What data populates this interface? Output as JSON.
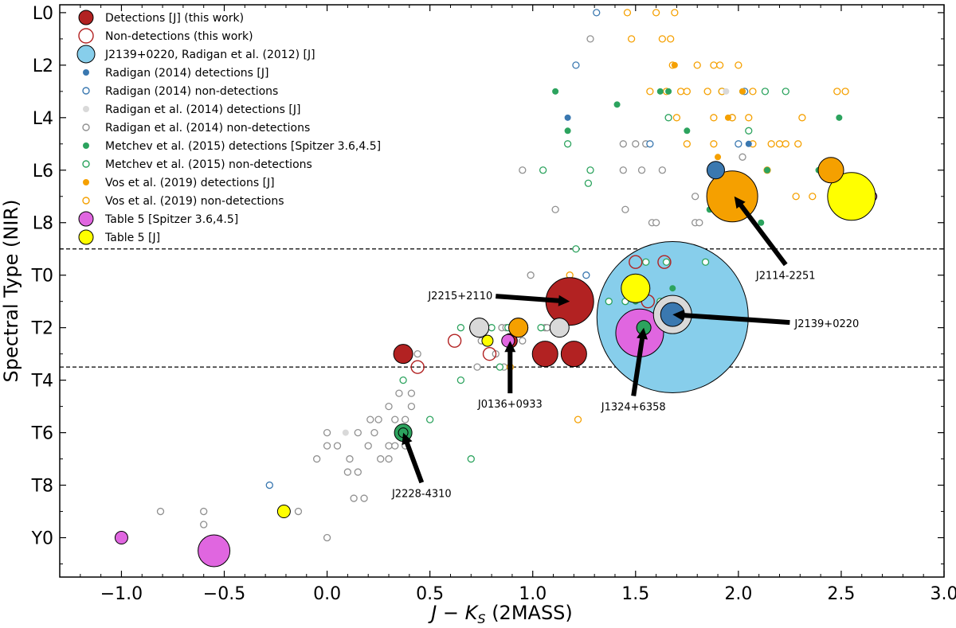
{
  "chart_data": {
    "type": "scatter",
    "title": "",
    "xlabel_main": "J − K",
    "xlabel_sub": "S",
    "xlabel_suffix": " (2MASS)",
    "ylabel": "Spectral Type (NIR)",
    "xlim": [
      -1.3,
      3.0
    ],
    "ylim": [
      -0.3,
      21.5
    ],
    "x_ticks": [
      -1.0,
      -0.5,
      0.0,
      0.5,
      1.0,
      1.5,
      2.0,
      2.5,
      3.0
    ],
    "x_tick_labels": [
      "−1.0",
      "−0.5",
      "0.0",
      "0.5",
      "1.0",
      "1.5",
      "2.0",
      "2.5",
      "3.0"
    ],
    "y_ticks": [
      0,
      2,
      4,
      6,
      8,
      10,
      12,
      14,
      16,
      18,
      20
    ],
    "y_tick_labels": [
      "L0",
      "L2",
      "L4",
      "L6",
      "L8",
      "T0",
      "T2",
      "T4",
      "T6",
      "T8",
      "Y0"
    ],
    "hlines": [
      9.0,
      13.5
    ],
    "grid": false,
    "legend_position": "top-left",
    "colors": {
      "detection_red": "#b22222",
      "blue": "#3a78b0",
      "green": "#2ca35e",
      "orange": "#f5a000",
      "gray_fill": "#d9d9d9",
      "gray_edge": "#909090",
      "magenta": "#e066e0",
      "yellow": "#ffff00",
      "skyblue": "#87ceeb"
    },
    "legend": [
      {
        "label": "Detections [J] (this work)",
        "marker": "big",
        "fill": "#b22222",
        "edge": "#000000"
      },
      {
        "label": "Non-detections (this work)",
        "marker": "big-open",
        "fill": "none",
        "edge": "#b22222"
      },
      {
        "label": "J2139+0220, Radigan et al. (2012) [J]",
        "marker": "bigger",
        "fill": "#87ceeb",
        "edge": "#000000"
      },
      {
        "label": "Radigan (2014) detections [J]",
        "marker": "small",
        "fill": "#3a78b0",
        "edge": "none"
      },
      {
        "label": "Radigan (2014) non-detections",
        "marker": "small-open",
        "fill": "none",
        "edge": "#3a78b0"
      },
      {
        "label": "Radigan et al. (2014) detections [J]",
        "marker": "small",
        "fill": "#d9d9d9",
        "edge": "none"
      },
      {
        "label": "Radigan et al. (2014) non-detections",
        "marker": "small-open",
        "fill": "none",
        "edge": "#909090"
      },
      {
        "label": "Metchev et al. (2015) detections [Spitzer 3.6,4.5]",
        "marker": "small",
        "fill": "#2ca35e",
        "edge": "none"
      },
      {
        "label": "Metchev et al. (2015) non-detections",
        "marker": "small-open",
        "fill": "none",
        "edge": "#2ca35e"
      },
      {
        "label": "Vos et al. (2019) detections [J]",
        "marker": "small",
        "fill": "#f5a000",
        "edge": "none"
      },
      {
        "label": "Vos et al. (2019) non-detections",
        "marker": "small-open",
        "fill": "none",
        "edge": "#f5a000"
      },
      {
        "label": "Table 5 [Spitzer 3.6,4.5]",
        "marker": "big",
        "fill": "#e066e0",
        "edge": "#000000"
      },
      {
        "label": "Table 5 [J]",
        "marker": "big",
        "fill": "#ffff00",
        "edge": "#000000"
      }
    ],
    "series": [
      {
        "name": "Gray non-detections",
        "style": "gn",
        "points": [
          [
            1.28,
            1
          ],
          [
            1.11,
            7.5
          ],
          [
            1.45,
            7.5
          ],
          [
            1.58,
            8
          ],
          [
            1.6,
            8
          ],
          [
            1.79,
            8
          ],
          [
            1.81,
            8
          ],
          [
            1.79,
            7
          ],
          [
            1.63,
            6
          ],
          [
            1.44,
            6
          ],
          [
            1.53,
            6
          ],
          [
            0.95,
            6
          ],
          [
            1.44,
            5
          ],
          [
            1.55,
            5
          ],
          [
            1.5,
            5
          ],
          [
            2.02,
            5.5
          ],
          [
            1.97,
            4
          ],
          [
            -0.05,
            17
          ],
          [
            0.0,
            16.5
          ],
          [
            0.05,
            16.5
          ],
          [
            0.0,
            16
          ],
          [
            0.11,
            17
          ],
          [
            0.15,
            16
          ],
          [
            0.2,
            16.5
          ],
          [
            0.23,
            16
          ],
          [
            0.21,
            15.5
          ],
          [
            0.25,
            15.5
          ],
          [
            0.1,
            17.5
          ],
          [
            0.15,
            17.5
          ],
          [
            0.3,
            16.5
          ],
          [
            0.33,
            16.5
          ],
          [
            0.26,
            17
          ],
          [
            0.39,
            16
          ],
          [
            0.38,
            16.5
          ],
          [
            0.38,
            15.5
          ],
          [
            0.3,
            17
          ],
          [
            0.13,
            18.5
          ],
          [
            0.18,
            18.5
          ],
          [
            -0.6,
            19.5
          ],
          [
            -0.6,
            19
          ],
          [
            -0.81,
            19
          ],
          [
            -0.14,
            19
          ],
          [
            0.0,
            20.0
          ],
          [
            0.3,
            15
          ],
          [
            0.33,
            15.5
          ],
          [
            0.41,
            15
          ],
          [
            0.35,
            14.5
          ],
          [
            0.41,
            14.5
          ],
          [
            0.44,
            13
          ],
          [
            0.75,
            12.5
          ],
          [
            0.82,
            13
          ],
          [
            0.85,
            12
          ],
          [
            0.87,
            12
          ],
          [
            0.9,
            12
          ],
          [
            0.95,
            12.5
          ],
          [
            0.99,
            10
          ],
          [
            1.06,
            12
          ],
          [
            1.07,
            12
          ],
          [
            1.15,
            12
          ],
          [
            1.25,
            10.5
          ],
          [
            0.73,
            13.5
          ],
          [
            0.86,
            13.5
          ],
          [
            0.87,
            12.5
          ],
          [
            0.89,
            12.5
          ],
          [
            0.9,
            12.0
          ]
        ]
      },
      {
        "name": "Blue non-detections",
        "style": "bn",
        "points": [
          [
            1.31,
            0
          ],
          [
            1.21,
            2
          ],
          [
            1.57,
            5
          ],
          [
            2.0,
            5
          ],
          [
            2.03,
            3
          ],
          [
            -0.28,
            18
          ],
          [
            1.26,
            10
          ]
        ]
      },
      {
        "name": "Green non-detections",
        "style": "mn",
        "points": [
          [
            1.17,
            5
          ],
          [
            1.28,
            6
          ],
          [
            1.05,
            6
          ],
          [
            1.27,
            6.5
          ],
          [
            1.66,
            4
          ],
          [
            1.92,
            3
          ],
          [
            2.05,
            4.5
          ],
          [
            2.13,
            3
          ],
          [
            2.23,
            3
          ],
          [
            1.84,
            9.5
          ],
          [
            1.21,
            9
          ],
          [
            1.55,
            9.5
          ],
          [
            1.65,
            9.5
          ],
          [
            1.37,
            11
          ],
          [
            0.84,
            13.5
          ],
          [
            0.8,
            12.0
          ],
          [
            0.88,
            12
          ],
          [
            0.94,
            12
          ],
          [
            1.04,
            12.0
          ],
          [
            0.65,
            14.0
          ],
          [
            0.5,
            15.5
          ],
          [
            0.37,
            14.0
          ],
          [
            0.7,
            17.0
          ],
          [
            0.65,
            12.0
          ],
          [
            1.62,
            11.0
          ],
          [
            1.65,
            11.5
          ],
          [
            1.53,
            12.0
          ],
          [
            1.68,
            12.0
          ],
          [
            1.75,
            11.5
          ],
          [
            1.45,
            11.0
          ]
        ]
      },
      {
        "name": "Vos non-detections",
        "style": "vn",
        "points": [
          [
            1.46,
            0
          ],
          [
            1.48,
            1
          ],
          [
            1.6,
            0
          ],
          [
            1.63,
            1
          ],
          [
            1.67,
            1
          ],
          [
            1.69,
            0
          ],
          [
            1.68,
            2
          ],
          [
            1.8,
            2
          ],
          [
            1.88,
            2
          ],
          [
            1.91,
            2
          ],
          [
            2.0,
            2
          ],
          [
            1.57,
            3
          ],
          [
            1.65,
            3
          ],
          [
            1.72,
            3
          ],
          [
            1.75,
            3
          ],
          [
            1.85,
            3
          ],
          [
            1.92,
            3
          ],
          [
            2.07,
            3
          ],
          [
            1.7,
            4
          ],
          [
            1.88,
            4
          ],
          [
            1.97,
            4
          ],
          [
            2.05,
            4
          ],
          [
            2.31,
            4
          ],
          [
            2.48,
            3
          ],
          [
            2.52,
            3
          ],
          [
            1.75,
            5
          ],
          [
            1.88,
            5
          ],
          [
            2.07,
            5
          ],
          [
            2.16,
            5
          ],
          [
            2.2,
            5
          ],
          [
            2.23,
            5
          ],
          [
            2.29,
            5
          ],
          [
            2.28,
            7
          ],
          [
            2.36,
            7
          ],
          [
            2.14,
            6
          ],
          [
            1.22,
            15.5
          ],
          [
            0.89,
            13.5
          ],
          [
            1.18,
            10.0
          ],
          [
            1.18,
            11.0
          ],
          [
            1.27,
            11.0
          ]
        ]
      },
      {
        "name": "Gray detections",
        "style": "gd",
        "points": [
          [
            1.94,
            3
          ],
          [
            0.09,
            16
          ]
        ]
      },
      {
        "name": "Blue detections",
        "style": "bd",
        "points": [
          [
            1.17,
            4
          ],
          [
            2.05,
            5
          ]
        ]
      },
      {
        "name": "Green detections",
        "style": "md",
        "points": [
          [
            1.11,
            3
          ],
          [
            1.41,
            3.5
          ],
          [
            1.17,
            4.5
          ],
          [
            1.62,
            3
          ],
          [
            1.66,
            3
          ],
          [
            2.02,
            3
          ],
          [
            1.75,
            4.5
          ],
          [
            1.86,
            7.5
          ],
          [
            1.93,
            7.5
          ],
          [
            2.14,
            6
          ],
          [
            2.39,
            6
          ],
          [
            2.49,
            4
          ],
          [
            2.11,
            8
          ],
          [
            1.5,
            11.0
          ],
          [
            1.68,
            10.5
          ],
          [
            1.52,
            12.0
          ]
        ]
      },
      {
        "name": "Vos detections",
        "style": "vd",
        "points": [
          [
            1.69,
            2
          ],
          [
            1.95,
            4
          ],
          [
            1.9,
            5.5
          ],
          [
            2.02,
            3
          ]
        ]
      },
      {
        "name": "J2139+0220 Radigan 2012",
        "style": "sky",
        "points": [
          [
            1.68,
            11.6
          ]
        ],
        "size": 95
      },
      {
        "name": "Detections this work",
        "style": "red",
        "points": [
          [
            1.18,
            11.0
          ],
          [
            0.37,
            13.0
          ],
          [
            1.06,
            13.0
          ],
          [
            1.2,
            13.0
          ],
          [
            0.89,
            12.5
          ],
          [
            1.98,
            7.0
          ]
        ],
        "sizes": [
          30,
          12,
          16,
          16,
          9,
          6
        ]
      },
      {
        "name": "Non-detections this work",
        "style": "redopen",
        "points": [
          [
            1.5,
            9.5
          ],
          [
            1.64,
            9.5
          ],
          [
            1.56,
            11.0
          ],
          [
            0.62,
            12.5
          ],
          [
            0.44,
            13.5
          ],
          [
            0.79,
            13.0
          ]
        ],
        "sizes": [
          8,
          8,
          8,
          8,
          8,
          8
        ]
      },
      {
        "name": "Table 5 Spitzer",
        "style": "mag",
        "points": [
          [
            1.52,
            12.2
          ],
          [
            -0.55,
            20.5
          ],
          [
            -1.0,
            20.0
          ],
          [
            2.65,
            7.0
          ],
          [
            0.88,
            12.5
          ]
        ],
        "sizes": [
          30,
          20,
          8,
          6,
          8
        ]
      },
      {
        "name": "Table 5 J",
        "style": "yel",
        "points": [
          [
            1.5,
            10.5
          ],
          [
            2.55,
            7.0
          ],
          [
            0.78,
            12.5
          ],
          [
            -0.21,
            19.0
          ],
          [
            0.74,
            12.0
          ],
          [
            0.93,
            12.0
          ]
        ],
        "sizes": [
          18,
          30,
          7,
          8,
          12,
          12
        ]
      },
      {
        "name": "Large extras",
        "style": "extra",
        "points": [
          [
            1.97,
            7.0,
            "#f5a000",
            32
          ],
          [
            2.45,
            6.0,
            "#f5a000",
            16
          ],
          [
            1.89,
            6.0,
            "#3a78b0",
            11
          ],
          [
            0.93,
            12.0,
            "#f5a000",
            12
          ],
          [
            1.68,
            11.5,
            "#d9d9d9",
            24
          ],
          [
            1.68,
            11.5,
            "#3a78b0",
            15
          ],
          [
            1.54,
            12.0,
            "#2ca35e",
            9
          ],
          [
            0.37,
            16.0,
            "#2ca35e",
            11
          ],
          [
            0.37,
            16.0,
            "#2ca35e",
            6
          ],
          [
            1.13,
            12.0,
            "#d9d9d9",
            12
          ],
          [
            0.74,
            12.0,
            "#d9d9d9",
            12
          ]
        ]
      }
    ],
    "annotations": [
      {
        "text": "J2215+2110",
        "xy": [
          1.18,
          11.0
        ],
        "text_xy": [
          0.82,
          10.8
        ]
      },
      {
        "text": "J0136+0933",
        "xy": [
          0.89,
          12.5
        ],
        "text_xy": [
          0.89,
          14.5
        ]
      },
      {
        "text": "J1324+6358",
        "xy": [
          1.54,
          12.0
        ],
        "text_xy": [
          1.49,
          14.6
        ]
      },
      {
        "text": "J2139+0220",
        "xy": [
          1.68,
          11.5
        ],
        "text_xy": [
          2.25,
          11.8
        ]
      },
      {
        "text": "J2114-2251",
        "xy": [
          1.98,
          7.0
        ],
        "text_xy": [
          2.23,
          9.6
        ]
      },
      {
        "text": "J2228-4310",
        "xy": [
          0.37,
          16.0
        ],
        "text_xy": [
          0.46,
          17.9
        ]
      }
    ]
  }
}
